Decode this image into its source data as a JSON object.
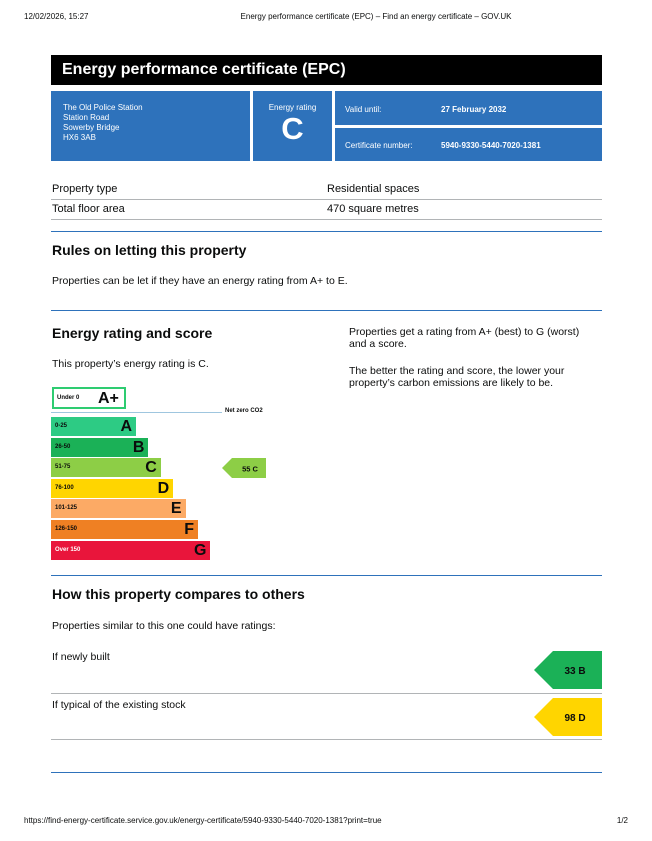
{
  "print_header": {
    "date": "12/02/2026, 15:27",
    "title": "Energy performance certificate (EPC) – Find an energy certificate – GOV.UK"
  },
  "banner": {
    "title": "Energy performance certificate (EPC)"
  },
  "address": {
    "line1": "The Old Police Station",
    "line2": "Station Road",
    "line3": "Sowerby Bridge",
    "line4": "HX6 3AB"
  },
  "energy_rating": {
    "label": "Energy rating",
    "value": "C"
  },
  "valid_until": {
    "label": "Valid until:",
    "value": "27 February 2032"
  },
  "certificate_number": {
    "label": "Certificate number:",
    "value": "5940-9330-5440-7020-1381"
  },
  "property": [
    {
      "key": "Property type",
      "value": "Residential spaces"
    },
    {
      "key": "Total floor area",
      "value": "470 square metres"
    }
  ],
  "letting": {
    "heading": "Rules on letting this property",
    "text": "Properties can be let if they have an energy rating from A+ to E."
  },
  "rating_section": {
    "heading": "Energy rating and score",
    "intro": "This property’s energy rating is C.",
    "side1": "Properties get a rating from A+ (best) to G (worst) and a score.",
    "side2": "The better the rating and score, the lower your property’s carbon emissions are likely to be."
  },
  "chart_data": {
    "type": "bar",
    "categories": [
      "A+",
      "A",
      "B",
      "C",
      "D",
      "E",
      "F",
      "G"
    ],
    "ranges": [
      "Under 0",
      "0-25",
      "26-50",
      "51-75",
      "76-100",
      "101-125",
      "126-150",
      "Over 150"
    ],
    "colors": [
      "#ffffff",
      "#2dcb84",
      "#1bb157",
      "#8dce46",
      "#ffd500",
      "#fcaa65",
      "#ef8023",
      "#e9153b"
    ],
    "net_zero_label": "Net zero CO2",
    "current": {
      "score": 55,
      "band": "C",
      "label": "55  C",
      "color": "#8dce46"
    }
  },
  "compare": {
    "heading": "How this property compares to others",
    "intro": "Properties similar to this one could have ratings:",
    "rows": [
      {
        "label": "If newly built",
        "score": "33",
        "band": "B",
        "text": "33  B",
        "color": "#1bb157"
      },
      {
        "label": "If typical of the existing stock",
        "score": "98",
        "band": "D",
        "text": "98  D",
        "color": "#ffd500"
      }
    ]
  },
  "print_footer": {
    "url": "https://find-energy-certificate.service.gov.uk/energy-certificate/5940-9330-5440-7020-1381?print=true",
    "page": "1/2"
  }
}
